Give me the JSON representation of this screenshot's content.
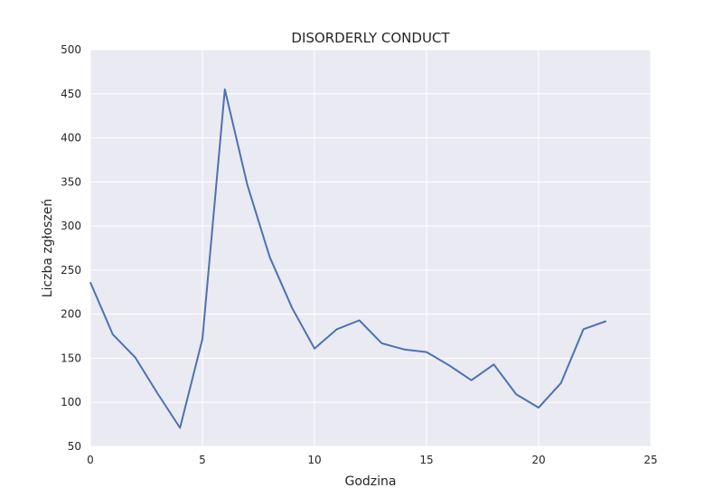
{
  "chart_data": {
    "type": "line",
    "title": "DISORDERLY CONDUCT",
    "xlabel": "Godzina",
    "ylabel": "Liczba zgłoszeń",
    "xlim": [
      0,
      25
    ],
    "ylim": [
      50,
      500
    ],
    "x_ticks": [
      "0",
      "5",
      "10",
      "15",
      "20",
      "25"
    ],
    "y_ticks": [
      "50",
      "100",
      "150",
      "200",
      "250",
      "300",
      "350",
      "400",
      "450",
      "500"
    ],
    "grid": true,
    "background_color": "#eaeaf2",
    "grid_color": "#ffffff",
    "series": [
      {
        "color": "#4c72b0",
        "x": [
          0,
          1,
          2,
          3,
          4,
          5,
          6,
          7,
          8,
          9,
          10,
          11,
          12,
          13,
          14,
          15,
          16,
          17,
          18,
          19,
          20,
          21,
          22,
          23
        ],
        "y": [
          236,
          177,
          151,
          110,
          71,
          172,
          455,
          347,
          265,
          207,
          161,
          183,
          193,
          167,
          160,
          157,
          142,
          125,
          143,
          109,
          94,
          122,
          183,
          192
        ]
      }
    ]
  }
}
